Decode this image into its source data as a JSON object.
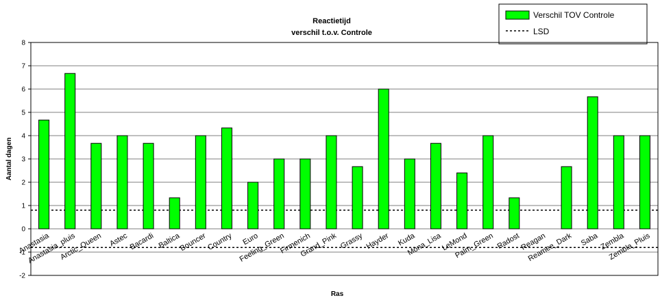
{
  "chart_data": {
    "type": "bar",
    "title": "Reactietijd",
    "subtitle": "verschil t.o.v. Controle",
    "xlabel": "Ras",
    "ylabel": "Aantal dagen",
    "ylim": [
      -2,
      8
    ],
    "yticks": [
      -2,
      -1,
      0,
      1,
      2,
      3,
      4,
      5,
      6,
      7,
      8
    ],
    "grid": true,
    "legend_position": "top-right",
    "categories": [
      "Anastasia",
      "Anastasia_pluis",
      "Arctic_Queen",
      "Astec",
      "Bacardi",
      "Baltica",
      "Bouncer",
      "Country",
      "Euro",
      "Feeling_Green",
      "Firmenich",
      "Grand_Pink",
      "Grassy",
      "Hayder",
      "Kuda",
      "Mona_Lisa",
      "LeMond",
      "Palm_Green",
      "Radost",
      "Reagan",
      "Reamee_Dark",
      "Saba",
      "Zembla",
      "Zembla_Pluis"
    ],
    "series": [
      {
        "name": "Verschil TOV Controle",
        "color": "#00ff00",
        "values": [
          4.67,
          6.67,
          3.67,
          4,
          3.67,
          1.33,
          4,
          4.33,
          2,
          3,
          3,
          4,
          2.67,
          6,
          3,
          3.67,
          2.4,
          4,
          1.33,
          0,
          2.67,
          5.67,
          4,
          4
        ]
      }
    ],
    "reference_lines": [
      {
        "name": "LSD",
        "style": "dotted",
        "values": [
          0.8,
          -0.8
        ]
      }
    ]
  }
}
